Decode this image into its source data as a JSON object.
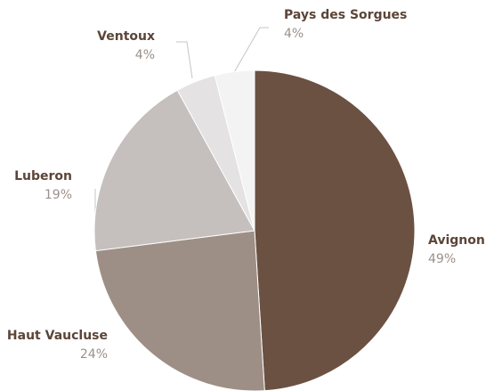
{
  "chart_data": {
    "type": "pie",
    "categories": [
      "Avignon",
      "Haut Vaucluse",
      "Luberon",
      "Ventoux",
      "Pays des Sorgues"
    ],
    "values": [
      49,
      24,
      19,
      4,
      4
    ],
    "value_labels": [
      "49%",
      "24%",
      "19%",
      "4%",
      "4%"
    ],
    "colors": [
      "#6b5142",
      "#9e8f86",
      "#c5bfbe",
      "#e4e2e2",
      "#f3f3f3"
    ]
  }
}
